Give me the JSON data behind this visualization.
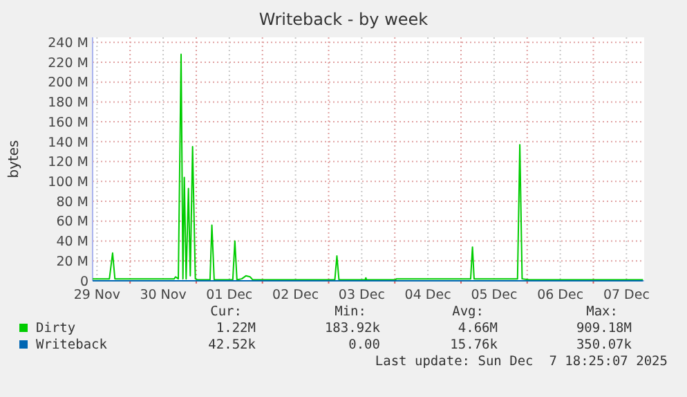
{
  "chart_data": {
    "type": "line",
    "title": "Writeback - by week",
    "ylabel": "bytes",
    "xlim": [
      "2025-11-29T10:25",
      "2025-12-07T18:25"
    ],
    "xticks": [
      {
        "value": "2025-11-29T12:00",
        "label": "29 Nov"
      },
      {
        "value": "2025-11-30T00:00",
        "label": null
      },
      {
        "value": "2025-11-30T12:00",
        "label": "30 Nov"
      },
      {
        "value": "2025-12-01T00:00",
        "label": null
      },
      {
        "value": "2025-12-01T12:00",
        "label": "01 Dec"
      },
      {
        "value": "2025-12-02T00:00",
        "label": null
      },
      {
        "value": "2025-12-02T12:00",
        "label": "02 Dec"
      },
      {
        "value": "2025-12-03T00:00",
        "label": null
      },
      {
        "value": "2025-12-03T12:00",
        "label": "03 Dec"
      },
      {
        "value": "2025-12-04T00:00",
        "label": null
      },
      {
        "value": "2025-12-04T12:00",
        "label": "04 Dec"
      },
      {
        "value": "2025-12-05T00:00",
        "label": null
      },
      {
        "value": "2025-12-05T12:00",
        "label": "05 Dec"
      },
      {
        "value": "2025-12-06T00:00",
        "label": null
      },
      {
        "value": "2025-12-06T12:00",
        "label": "06 Dec"
      },
      {
        "value": "2025-12-07T00:00",
        "label": null
      },
      {
        "value": "2025-12-07T12:00",
        "label": "07 Dec"
      }
    ],
    "ylim": [
      0,
      245
    ],
    "yticks": [
      0,
      {
        "value": 20,
        "label": "20 M"
      },
      {
        "value": 40,
        "label": "40 M"
      },
      {
        "value": 60,
        "label": "60 M"
      },
      {
        "value": 80,
        "label": "80 M"
      },
      {
        "value": 100,
        "label": "100 M"
      },
      {
        "value": 120,
        "label": "120 M"
      },
      {
        "value": 140,
        "label": "140 M"
      },
      {
        "value": 160,
        "label": "160 M"
      },
      {
        "value": 180,
        "label": "180 M"
      },
      {
        "value": 200,
        "label": "200 M"
      },
      {
        "value": 220,
        "label": "220 M"
      },
      {
        "value": 240,
        "label": "240 M"
      }
    ],
    "grid": true,
    "legend": "bottom",
    "line_style": "solid",
    "series": [
      {
        "name": "Dirty",
        "color": "#00cc00",
        "x": [
          "2025-11-29T10:25",
          "2025-11-29T16:30",
          "2025-11-29T17:40",
          "2025-11-29T18:30",
          "2025-11-30T16:00",
          "2025-11-30T16:30",
          "2025-11-30T17:30",
          "2025-11-30T18:30",
          "2025-11-30T19:10",
          "2025-11-30T19:40",
          "2025-11-30T20:20",
          "2025-11-30T21:10",
          "2025-11-30T21:50",
          "2025-11-30T22:40",
          "2025-11-30T23:40",
          "2025-12-01T00:30",
          "2025-12-01T05:00",
          "2025-12-01T05:40",
          "2025-12-01T06:30",
          "2025-12-01T13:15",
          "2025-12-01T14:00",
          "2025-12-01T14:45",
          "2025-12-01T16:30",
          "2025-12-01T18:00",
          "2025-12-01T19:30",
          "2025-12-01T20:30",
          "2025-12-03T02:15",
          "2025-12-03T03:00",
          "2025-12-03T03:45",
          "2025-12-03T13:15",
          "2025-12-03T13:30",
          "2025-12-03T13:45",
          "2025-12-04T00:20",
          "2025-12-04T00:30",
          "2025-12-05T03:30",
          "2025-12-05T04:10",
          "2025-12-05T04:45",
          "2025-12-05T20:30",
          "2025-12-05T21:20",
          "2025-12-05T22:10",
          "2025-12-06T00:40",
          "2025-12-07T18:00"
        ],
        "values": [
          2,
          2,
          28,
          2,
          2,
          4,
          2,
          228,
          2,
          104,
          2,
          93,
          5,
          135,
          2,
          1,
          1,
          56,
          1,
          1,
          40,
          1,
          2,
          5,
          4,
          1,
          1,
          25,
          1,
          1,
          3,
          1,
          1,
          2,
          2,
          34,
          2,
          2,
          137,
          2,
          1,
          1
        ]
      },
      {
        "name": "Writeback",
        "color": "#0066b3",
        "x": [
          "2025-11-29T10:25",
          "2025-12-07T18:00"
        ],
        "values": [
          0,
          0
        ]
      }
    ],
    "annotations": [
      "Cur:",
      "Min:",
      "Avg:",
      "Max:",
      "1.22M",
      "183.92k",
      "4.66M",
      "909.18M",
      "42.52k",
      "0.00",
      "15.76k",
      "350.07k",
      "Last update: Sun Dec  7 18:25:07 2025"
    ]
  }
}
